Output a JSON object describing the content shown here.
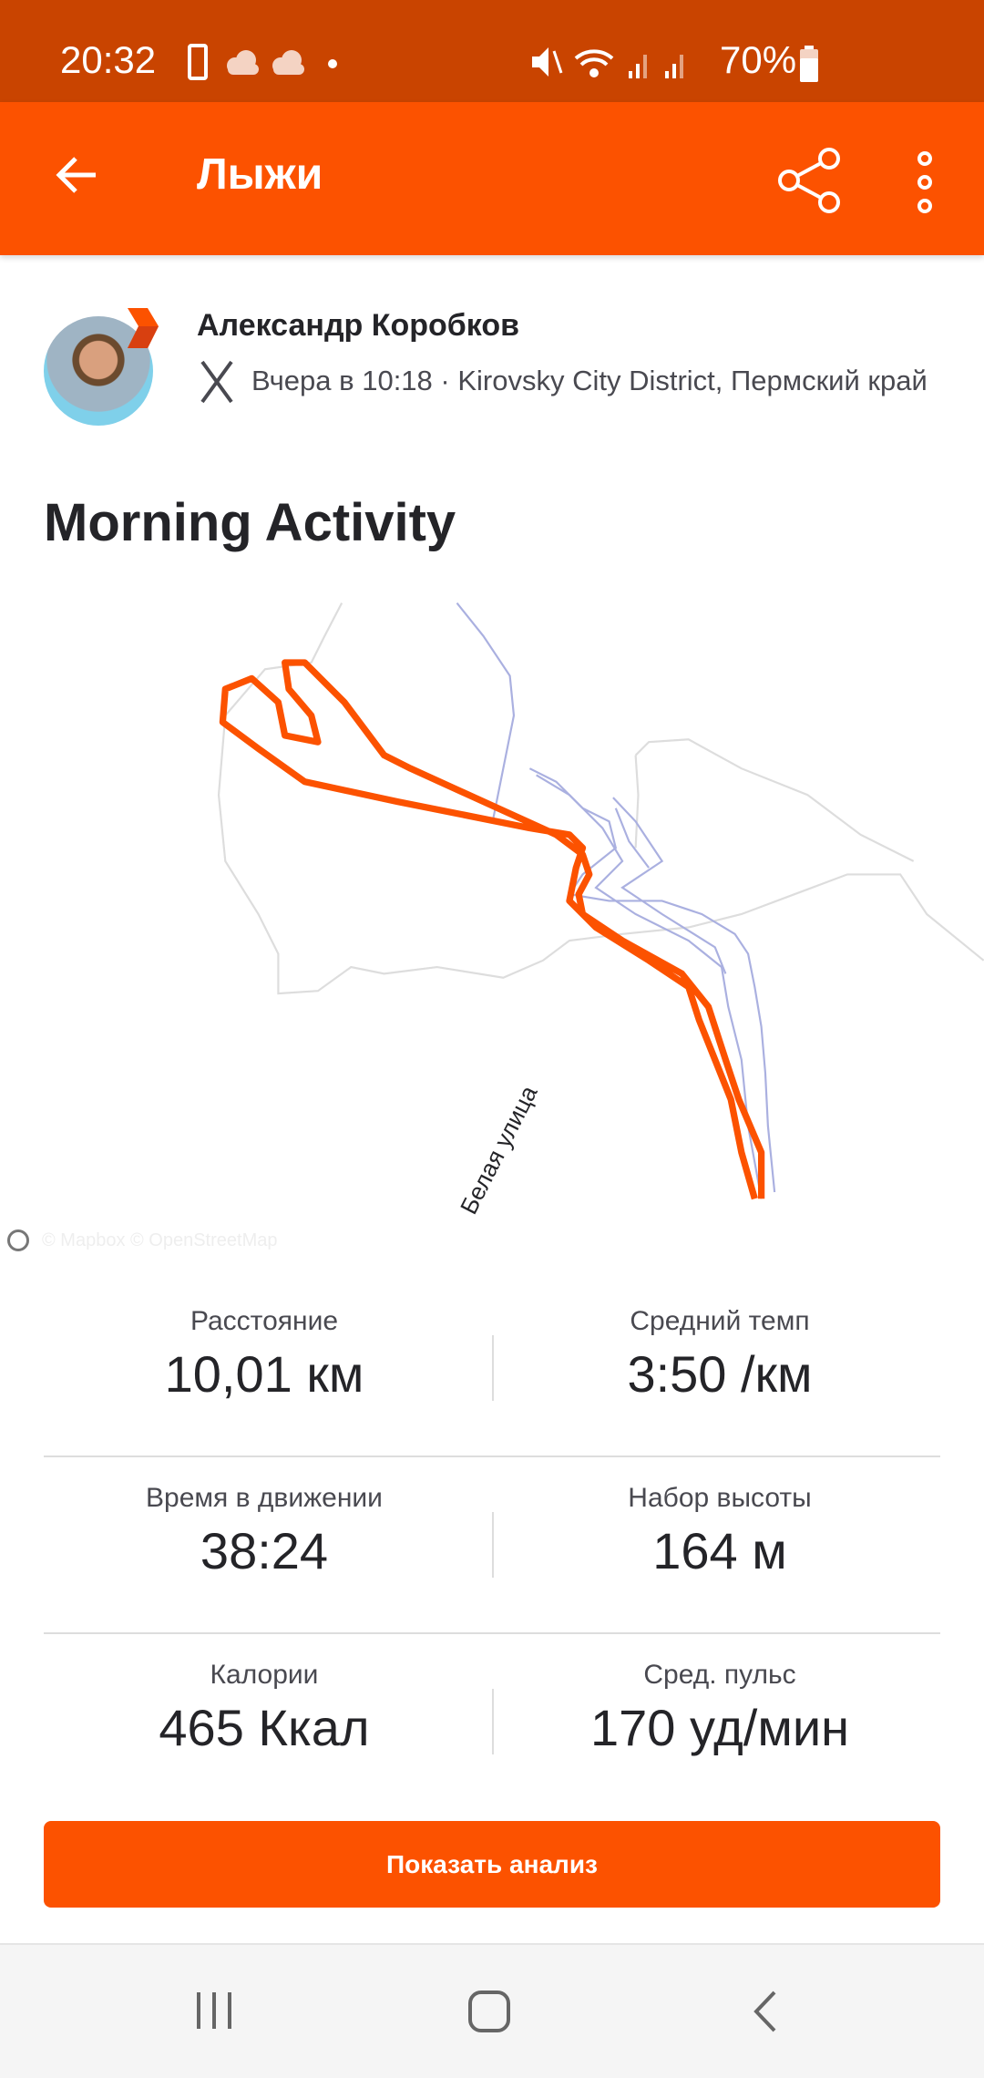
{
  "status_bar": {
    "time": "20:32",
    "battery": "70%"
  },
  "header": {
    "title": "Лыжи"
  },
  "athlete": {
    "name": "Александр Коробков",
    "meta": "Вчера в 10:18 · Kirovsky City District, Пермский край"
  },
  "activity": {
    "title": "Morning Activity"
  },
  "map": {
    "street_label": "Белая улица",
    "attribution": "© Mapbox © OpenStreetMap",
    "route_color": "#fc5200"
  },
  "stats": [
    {
      "label": "Расстояние",
      "value": "10,01 км"
    },
    {
      "label": "Средний темп",
      "value": "3:50 /км"
    },
    {
      "label": "Время в движении",
      "value": "38:24"
    },
    {
      "label": "Набор высоты",
      "value": "164 м"
    },
    {
      "label": "Калории",
      "value": "465 Ккал"
    },
    {
      "label": "Сред. пульс",
      "value": "170 уд/мин"
    }
  ],
  "analysis_button": "Показать анализ",
  "colors": {
    "accent": "#fc5200",
    "status_bar": "#c94400"
  }
}
